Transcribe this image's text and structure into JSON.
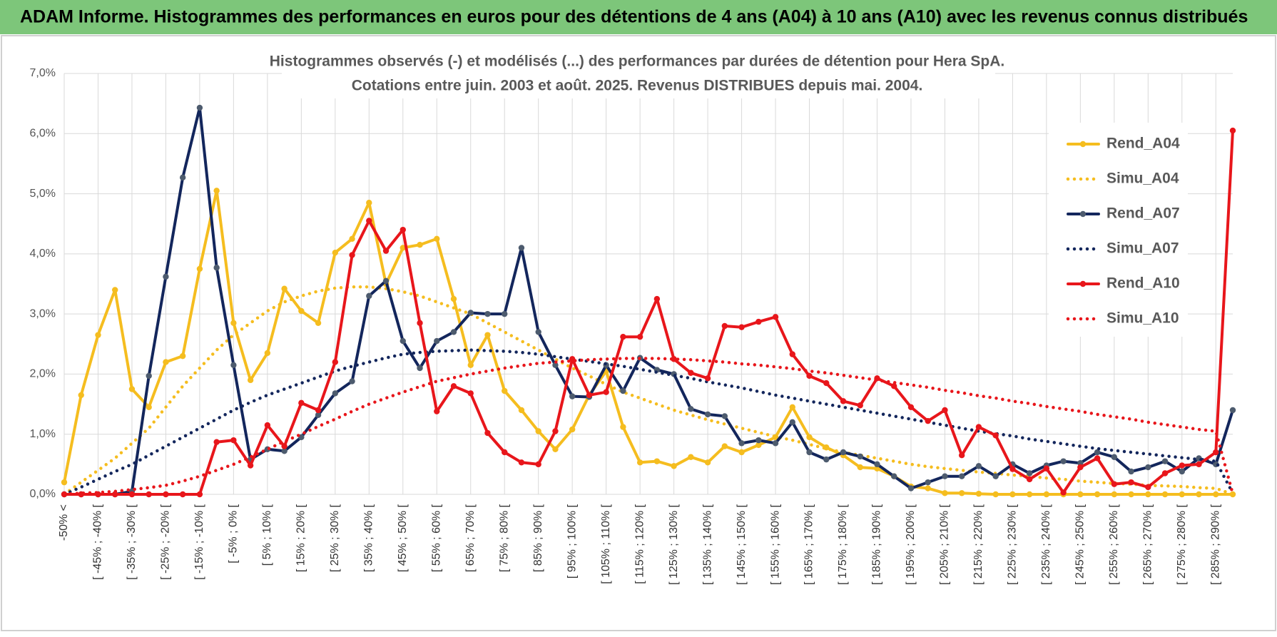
{
  "header": {
    "title": "ADAM Informe. Histogrammes des performances en euros pour des détentions de 4 ans (A04) à 10 ans (A10) avec les revenus connus distribués"
  },
  "chart_data": {
    "type": "line",
    "title": "Histogrammes observés (-) et modélisés (...) des performances par durées de détention pour Hera SpA.",
    "subtitle": "Cotations entre juin. 2003 et août. 2025. Revenus DISTRIBUES depuis mai. 2004.",
    "categories": [
      "-50% <",
      null,
      "[ -45% ; -40% [",
      null,
      "[ -35% ; -30% [",
      null,
      "[ -25% ; -20% [",
      null,
      "[ -15% ; -10% [",
      null,
      "[ -5% ; 0% [",
      null,
      "[ 5% ; 10% [",
      null,
      "[ 15% ; 20% [",
      null,
      "[ 25% ; 30% [",
      null,
      "[ 35% ; 40% [",
      null,
      "[ 45% ; 50% [",
      null,
      "[ 55% ; 60% [",
      null,
      "[ 65% ; 70% [",
      null,
      "[ 75% ; 80% [",
      null,
      "[ 85% ; 90% [",
      null,
      "[ 95% ; 100% [",
      null,
      "[ 105% ; 110% [",
      null,
      "[ 115% ; 120% [",
      null,
      "[ 125% ; 130% [",
      null,
      "[ 135% ; 140% [",
      null,
      "[ 145% ; 150% [",
      null,
      "[ 155% ; 160% [",
      null,
      "[ 165% ; 170% [",
      null,
      "[ 175% ; 180% [",
      null,
      "[ 185% ; 190% [",
      null,
      "[ 195% ; 200% [",
      null,
      "[ 205% ; 210% [",
      null,
      "[ 215% ; 220% [",
      null,
      "[ 225% ; 230% [",
      null,
      "[ 235% ; 240% [",
      null,
      "[ 245% ; 250% [",
      null,
      "[ 255% ; 260% [",
      null,
      "[ 265% ; 270% [",
      null,
      "[ 275% ; 280% [",
      null,
      "[ 285% ; 290% [",
      null
    ],
    "series": [
      {
        "name": "Rend_A04",
        "color": "#f5bd1f",
        "line_style": "solid",
        "markers": true,
        "values": [
          0.2,
          1.65,
          2.65,
          3.4,
          1.75,
          1.45,
          2.2,
          2.3,
          3.75,
          5.05,
          2.85,
          1.9,
          2.35,
          3.42,
          3.05,
          2.85,
          4.02,
          4.25,
          4.85,
          3.5,
          4.1,
          4.15,
          4.25,
          3.25,
          2.15,
          2.65,
          1.72,
          1.4,
          1.05,
          0.75,
          1.08,
          1.65,
          2.05,
          1.12,
          0.53,
          0.55,
          0.47,
          0.62,
          0.53,
          0.8,
          0.7,
          0.82,
          0.95,
          1.45,
          0.95,
          0.78,
          0.65,
          0.45,
          0.43,
          0.3,
          0.13,
          0.1,
          0.02,
          0.02,
          0.01,
          0,
          0,
          0,
          0,
          0,
          0,
          0,
          0,
          0,
          0,
          0,
          0,
          0,
          0,
          0
        ]
      },
      {
        "name": "Simu_A04",
        "color": "#f5bd1f",
        "line_style": "dotted",
        "markers": false,
        "values": [
          0,
          0.2,
          0.4,
          0.6,
          0.85,
          1.1,
          1.45,
          1.8,
          2.1,
          2.4,
          2.65,
          2.85,
          3.05,
          3.2,
          3.3,
          3.38,
          3.43,
          3.45,
          3.45,
          3.42,
          3.37,
          3.3,
          3.2,
          3.1,
          3.0,
          2.85,
          2.7,
          2.55,
          2.4,
          2.25,
          2.1,
          1.97,
          1.83,
          1.7,
          1.6,
          1.5,
          1.4,
          1.32,
          1.24,
          1.17,
          1.1,
          1.03,
          0.96,
          0.9,
          0.83,
          0.76,
          0.7,
          0.65,
          0.6,
          0.55,
          0.5,
          0.46,
          0.43,
          0.4,
          0.37,
          0.35,
          0.32,
          0.3,
          0.27,
          0.25,
          0.22,
          0.2,
          0.18,
          0.17,
          0.15,
          0.14,
          0.13,
          0.11,
          0.1,
          0
        ]
      },
      {
        "name": "Rend_A07",
        "color": "#13265c",
        "marker_color": "#4d5b6e",
        "line_style": "solid",
        "markers": true,
        "values": [
          0,
          0,
          0,
          0,
          0.05,
          1.97,
          3.62,
          5.27,
          6.43,
          3.77,
          2.15,
          0.58,
          0.75,
          0.72,
          0.95,
          1.32,
          1.68,
          1.88,
          3.3,
          3.55,
          2.55,
          2.1,
          2.55,
          2.7,
          3.02,
          3.0,
          3.0,
          4.1,
          2.7,
          2.15,
          1.63,
          1.62,
          2.15,
          1.72,
          2.27,
          2.07,
          2.0,
          1.42,
          1.33,
          1.3,
          0.85,
          0.9,
          0.85,
          1.2,
          0.7,
          0.58,
          0.7,
          0.63,
          0.5,
          0.3,
          0.1,
          0.2,
          0.3,
          0.3,
          0.47,
          0.3,
          0.5,
          0.35,
          0.48,
          0.55,
          0.52,
          0.7,
          0.62,
          0.38,
          0.45,
          0.55,
          0.38,
          0.6,
          0.5,
          1.4
        ]
      },
      {
        "name": "Simu_A07",
        "color": "#13265c",
        "line_style": "dotted",
        "markers": false,
        "values": [
          0,
          0.12,
          0.25,
          0.38,
          0.5,
          0.65,
          0.8,
          0.95,
          1.1,
          1.25,
          1.4,
          1.53,
          1.65,
          1.75,
          1.85,
          1.95,
          2.05,
          2.13,
          2.2,
          2.27,
          2.33,
          2.36,
          2.38,
          2.39,
          2.4,
          2.39,
          2.38,
          2.36,
          2.33,
          2.29,
          2.25,
          2.21,
          2.17,
          2.13,
          2.08,
          2.03,
          1.98,
          1.93,
          1.87,
          1.82,
          1.77,
          1.71,
          1.65,
          1.6,
          1.55,
          1.5,
          1.45,
          1.4,
          1.35,
          1.3,
          1.25,
          1.2,
          1.15,
          1.1,
          1.05,
          1.01,
          0.97,
          0.92,
          0.88,
          0.84,
          0.8,
          0.76,
          0.73,
          0.7,
          0.67,
          0.64,
          0.61,
          0.58,
          0.55,
          0.02
        ]
      },
      {
        "name": "Rend_A10",
        "color": "#e8161b",
        "line_style": "solid",
        "markers": true,
        "values": [
          0,
          0,
          0,
          0,
          0,
          0,
          0,
          0,
          0,
          0.87,
          0.9,
          0.48,
          1.15,
          0.8,
          1.52,
          1.4,
          2.2,
          3.98,
          4.55,
          4.05,
          4.4,
          2.85,
          1.38,
          1.8,
          1.68,
          1.02,
          0.7,
          0.53,
          0.5,
          1.05,
          2.25,
          1.65,
          1.7,
          2.62,
          2.62,
          3.25,
          2.25,
          2.02,
          1.93,
          2.8,
          2.78,
          2.87,
          2.95,
          2.33,
          1.97,
          1.85,
          1.55,
          1.48,
          1.93,
          1.8,
          1.45,
          1.22,
          1.4,
          0.65,
          1.12,
          0.98,
          0.42,
          0.25,
          0.43,
          0.03,
          0.45,
          0.6,
          0.17,
          0.2,
          0.12,
          0.35,
          0.48,
          0.5,
          0.7,
          6.05
        ]
      },
      {
        "name": "Simu_A10",
        "color": "#e8161b",
        "line_style": "dotted",
        "markers": false,
        "values": [
          0,
          0.02,
          0.03,
          0.05,
          0.08,
          0.11,
          0.15,
          0.22,
          0.3,
          0.4,
          0.5,
          0.62,
          0.75,
          0.88,
          1.0,
          1.13,
          1.25,
          1.38,
          1.5,
          1.6,
          1.7,
          1.79,
          1.88,
          1.94,
          2.0,
          2.05,
          2.1,
          2.14,
          2.18,
          2.2,
          2.22,
          2.24,
          2.25,
          2.26,
          2.26,
          2.26,
          2.25,
          2.24,
          2.22,
          2.2,
          2.17,
          2.15,
          2.12,
          2.09,
          2.05,
          2.02,
          1.98,
          1.94,
          1.9,
          1.86,
          1.82,
          1.78,
          1.73,
          1.69,
          1.64,
          1.6,
          1.55,
          1.51,
          1.46,
          1.42,
          1.38,
          1.33,
          1.29,
          1.25,
          1.2,
          1.16,
          1.12,
          1.08,
          1.05,
          0.01
        ]
      }
    ],
    "ylim": [
      0,
      7
    ],
    "yticks": [
      {
        "value": 0,
        "label": "0,0%"
      },
      {
        "value": 1,
        "label": "1,0%"
      },
      {
        "value": 2,
        "label": "2,0%"
      },
      {
        "value": 3,
        "label": "3,0%"
      },
      {
        "value": 4,
        "label": "4,0%"
      },
      {
        "value": 5,
        "label": "5,0%"
      },
      {
        "value": 6,
        "label": "6,0%"
      },
      {
        "value": 7,
        "label": "7,0%"
      }
    ],
    "grid": true,
    "legend": "right"
  }
}
